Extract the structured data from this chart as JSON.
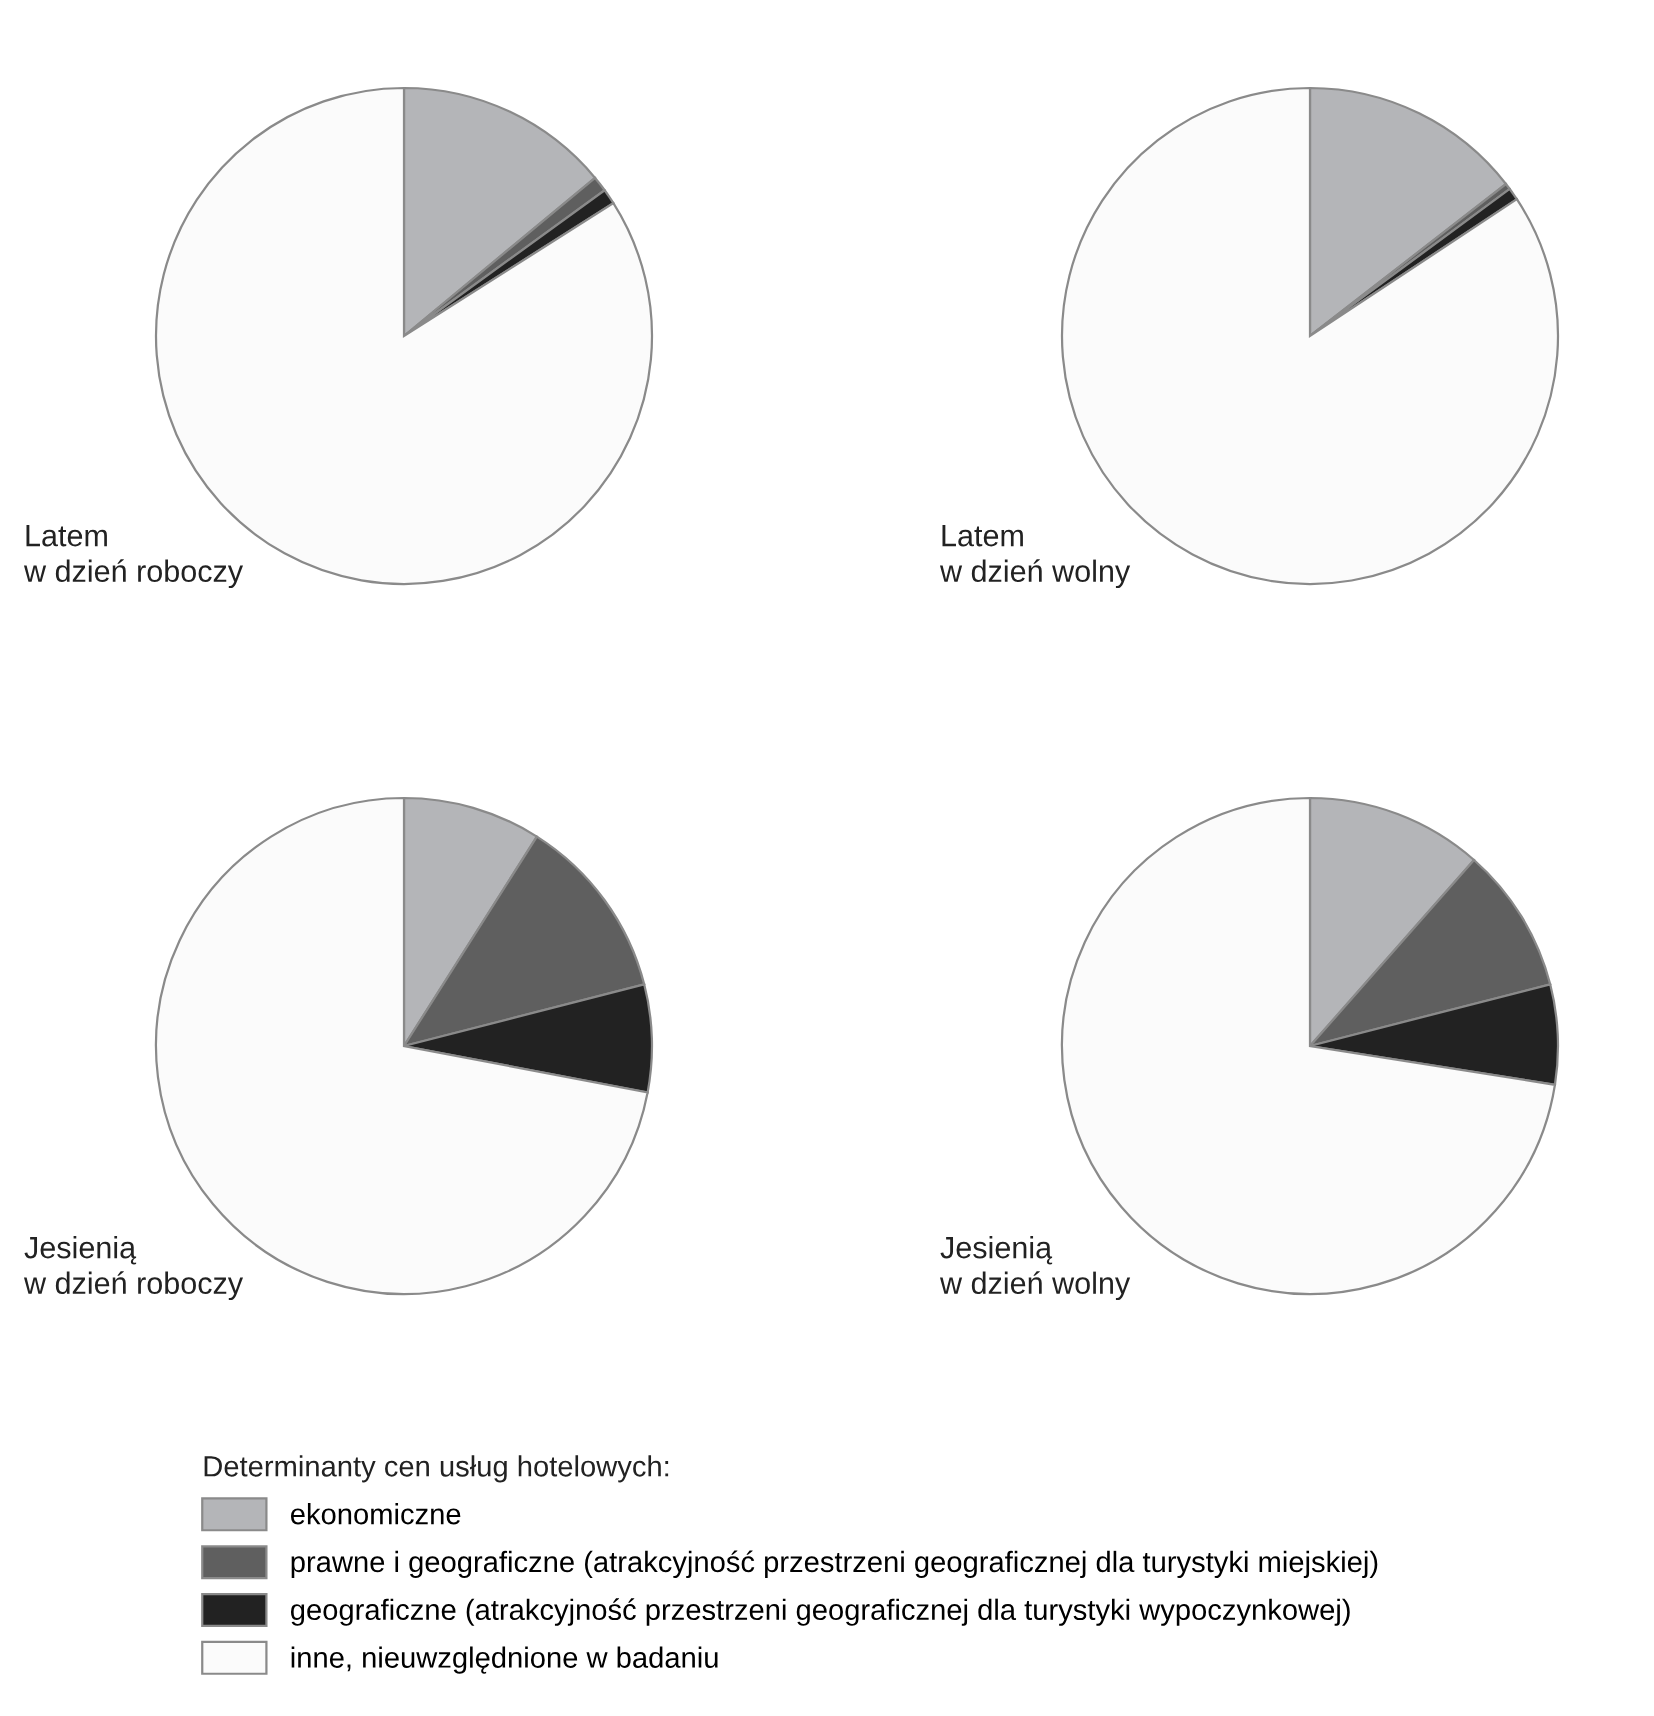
{
  "chart_data": [
    {
      "type": "pie",
      "title": "Latem\nw dzień roboczy",
      "categories": [
        "ekonomiczne",
        "prawne i geograficzne (atrakcyjność przestrzeni geograficznej dla turystyki miejskiej)",
        "geograficzne (atrakcyjność przestrzeni geograficznej dla turystyki wypoczynkowej)",
        "inne, nieuwzględnione w badaniu"
      ],
      "values": [
        14,
        1,
        1,
        84
      ],
      "colors": [
        "#b4b5b8",
        "#5f5f5f",
        "#222222",
        "#fbfbfb"
      ],
      "legend": "bottom",
      "legend_title": "Determinanty cen usług hotelowych:"
    },
    {
      "type": "pie",
      "title": "Latem\nw dzień wolny",
      "categories": [
        null,
        null,
        null,
        null
      ],
      "values": [
        14.5,
        0.4,
        0.8,
        84.3
      ],
      "colors": [
        "#b4b5b8",
        "#5f5f5f",
        "#222222",
        "#fbfbfb"
      ]
    },
    {
      "type": "pie",
      "title": "Jesienią\nw dzień roboczy",
      "categories": [
        null,
        null,
        null,
        null
      ],
      "values": [
        9,
        12,
        7,
        72
      ],
      "colors": [
        "#b4b5b8",
        "#5f5f5f",
        "#222222",
        "#fbfbfb"
      ]
    },
    {
      "type": "pie",
      "title": "Jesienią\nw dzień wolny",
      "categories": [
        null,
        null,
        null,
        null
      ],
      "values": [
        11.5,
        9.5,
        6.5,
        72.5
      ],
      "colors": [
        "#b4b5b8",
        "#5f5f5f",
        "#222222",
        "#fbfbfb"
      ]
    }
  ]
}
